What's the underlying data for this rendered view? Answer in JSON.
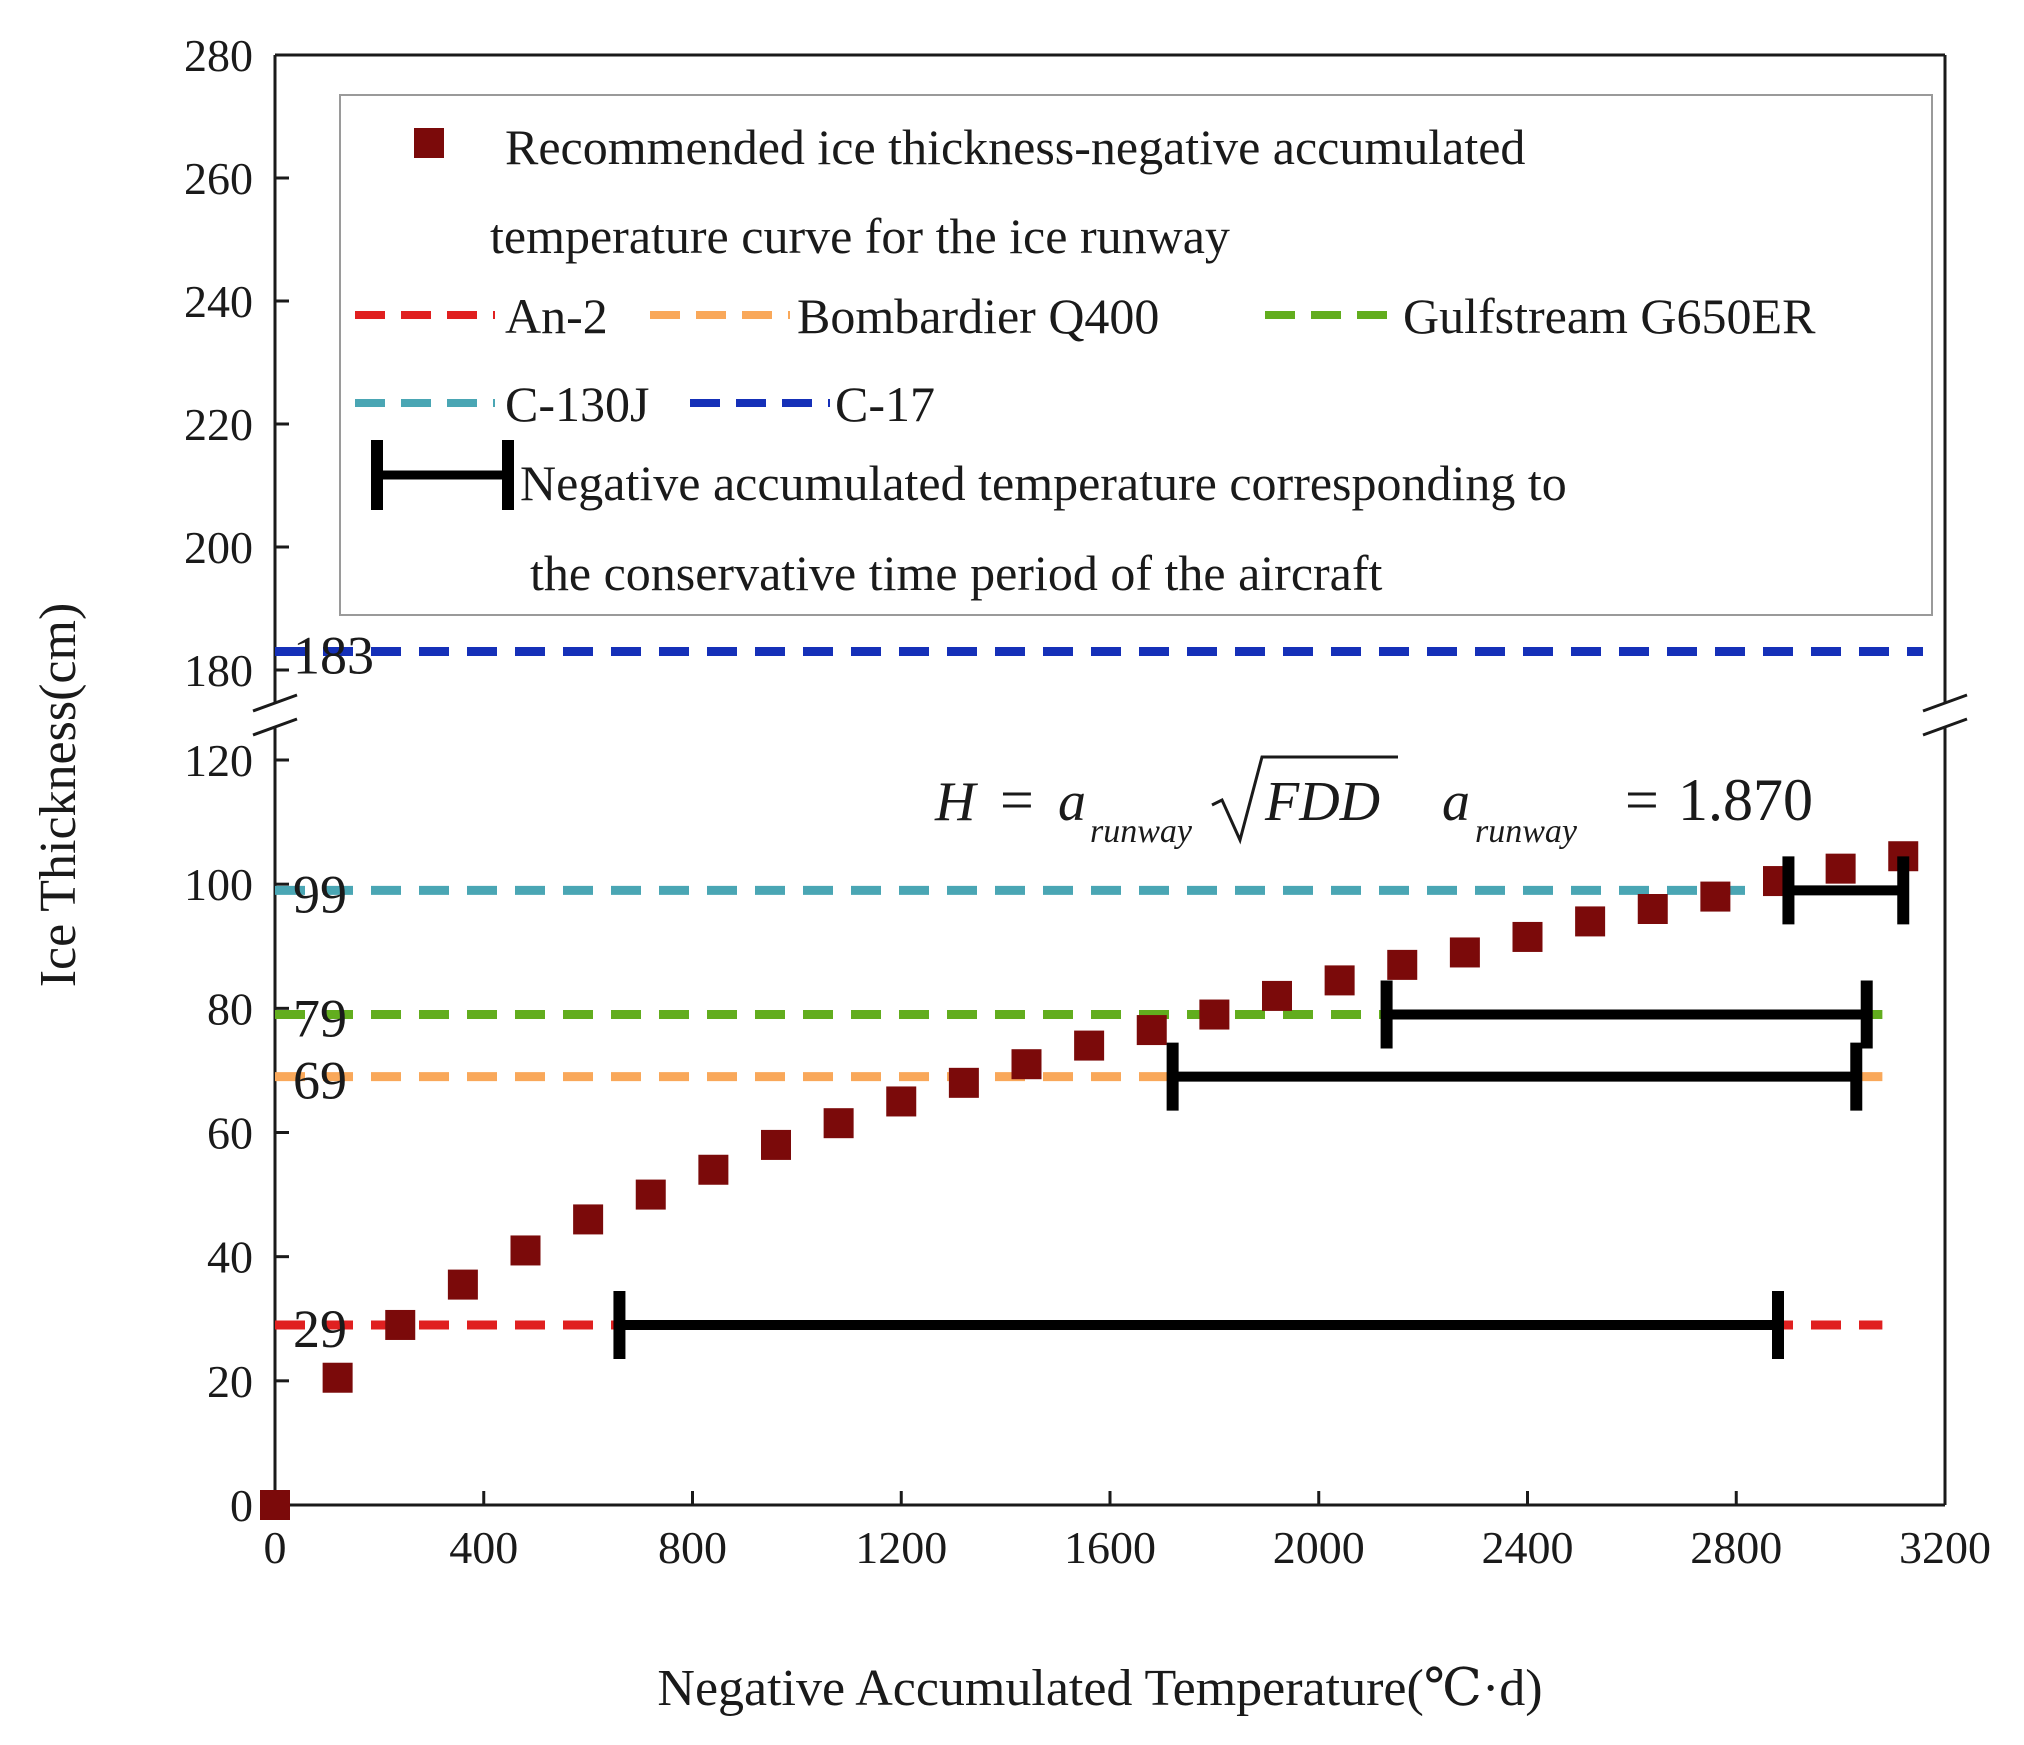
{
  "chart_data": {
    "type": "scatter",
    "title": "",
    "xlabel": "Negative Accumulated Temperature(℃·d)",
    "ylabel": "Ice Thickness(cm)",
    "xlim": [
      0,
      3200
    ],
    "ylim_lower": [
      0,
      120
    ],
    "ylim_upper": [
      180,
      280
    ],
    "axis_break": "between 120 and 180",
    "x_ticks": [
      "0",
      "400",
      "800",
      "1200",
      "1600",
      "2000",
      "2400",
      "2800",
      "3200"
    ],
    "y_ticks_lower": [
      "0",
      "20",
      "40",
      "60",
      "80",
      "100",
      "120"
    ],
    "y_ticks_upper": [
      "180",
      "200",
      "220",
      "240",
      "260",
      "280"
    ],
    "scatter": {
      "name": "Recommended ice thickness-negative accumulated temperature curve for the ice runway",
      "color": "#7b0a0a",
      "x": [
        0,
        120,
        240,
        360,
        480,
        600,
        720,
        840,
        960,
        1080,
        1200,
        1320,
        1440,
        1560,
        1680,
        1800,
        1920,
        2040,
        2160,
        2280,
        2400,
        2520,
        2640,
        2760,
        2880,
        3000,
        3120
      ],
      "y": [
        0,
        20.5,
        29,
        35.5,
        41,
        46,
        50,
        54,
        58,
        61.5,
        65,
        68,
        71,
        74,
        76.5,
        79,
        82,
        84.5,
        87,
        89,
        91.5,
        94,
        96,
        98,
        100.5,
        102.5,
        104.5
      ]
    },
    "thresholds": [
      {
        "name": "An-2",
        "value": 29,
        "label": "29",
        "color": "#e02020"
      },
      {
        "name": "Bombardier Q400",
        "value": 69,
        "label": "69",
        "color": "#f9a85a"
      },
      {
        "name": "Gulfstream G650ER",
        "value": 79,
        "label": "79",
        "color": "#62ad1e"
      },
      {
        "name": "C-130J",
        "value": 99,
        "label": "99",
        "color": "#4aa6b4"
      },
      {
        "name": "C-17",
        "value": 183,
        "label": "183",
        "color": "#1530b8"
      }
    ],
    "ranges": [
      {
        "aircraft": "An-2",
        "y": 29,
        "x_start": 660,
        "x_end": 2880
      },
      {
        "aircraft": "Bombardier Q400",
        "y": 69,
        "x_start": 1720,
        "x_end": 3030
      },
      {
        "aircraft": "Gulfstream G650ER",
        "y": 79,
        "x_start": 2130,
        "x_end": 3050
      },
      {
        "aircraft": "C-130J",
        "y": 99,
        "x_start": 2900,
        "x_end": 3120
      }
    ],
    "range_legend": "Negative accumulated temperature corresponding to the conservative time period of the aircraft",
    "scatter_legend_line1": "Recommended ice thickness-negative accumulated",
    "scatter_legend_line2": "temperature curve for the ice runway",
    "range_legend_line1": "Negative accumulated temperature corresponding to",
    "range_legend_line2": "the conservative time period of the aircraft",
    "equation": {
      "lhs": "H",
      "eq1": "=",
      "coef": "a",
      "sub": "runway",
      "rad": "FDD",
      "coef2": "a",
      "sub2": "runway",
      "eq2": "=",
      "value": "1.870"
    },
    "legend_position": "top"
  }
}
